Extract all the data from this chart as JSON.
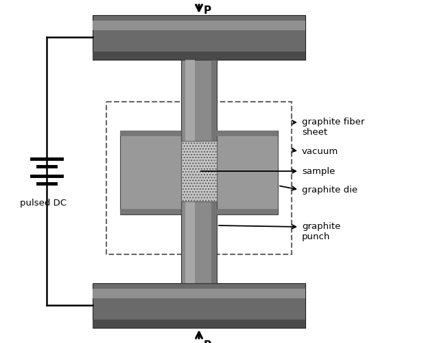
{
  "bg_color": "#ffffff",
  "platen_dark": "#4a4a4a",
  "platen_mid": "#6a6a6a",
  "platen_light": "#909090",
  "punch_dark": "#666666",
  "punch_mid": "#8a8a8a",
  "punch_light": "#b0b0b0",
  "die_dark": "#777777",
  "die_mid": "#999999",
  "die_light": "#bbbbbb",
  "sample_fill": "#c8c8c8",
  "wire_color": "#000000",
  "arrow_color": "#000000",
  "dash_color": "#666666",
  "text_color": "#000000",
  "labels": {
    "graphite_fiber_sheet": "graphite fiber\nsheet",
    "vacuum": "vacuum",
    "sample": "sample",
    "graphite_die": "graphite die",
    "graphite_punch": "graphite\npunch",
    "pulsed_dc": "pulsed DC",
    "p_top": "P",
    "p_bot": "P"
  },
  "font_size": 9.5,
  "bold_font_size": 11
}
